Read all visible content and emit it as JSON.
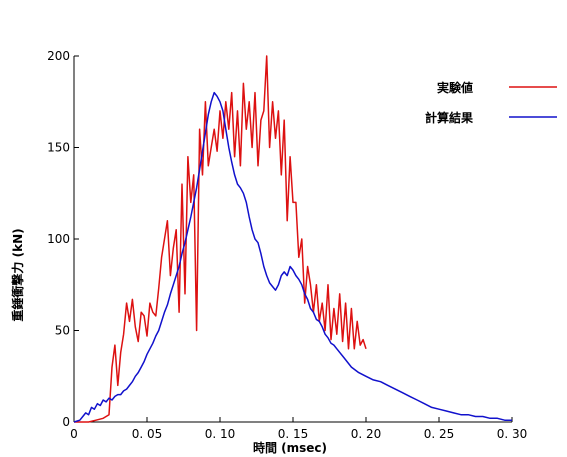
{
  "chart_data": {
    "type": "line",
    "title": "",
    "xlabel": "時間 (msec)",
    "ylabel": "重錘衝撃力 (kN)",
    "xlim": [
      0,
      0.3
    ],
    "ylim": [
      0,
      200
    ],
    "x_ticks": [
      0,
      0.05,
      0.1,
      0.15,
      0.2,
      0.25,
      0.3
    ],
    "x_tick_labels": [
      "0",
      "0. 05",
      "0. 10",
      "0. 15",
      "0. 20",
      "0. 25",
      "0. 30"
    ],
    "y_ticks": [
      0,
      50,
      100,
      150,
      200
    ],
    "y_tick_labels": [
      "0",
      "50",
      "100",
      "150",
      "200"
    ],
    "grid": false,
    "legend_position": "top-right",
    "series": [
      {
        "name": "実験値",
        "color": "#dd1111",
        "x": [
          0.0,
          0.005,
          0.01,
          0.015,
          0.02,
          0.024,
          0.026,
          0.028,
          0.03,
          0.032,
          0.034,
          0.036,
          0.038,
          0.04,
          0.042,
          0.044,
          0.046,
          0.048,
          0.05,
          0.052,
          0.054,
          0.056,
          0.058,
          0.06,
          0.062,
          0.064,
          0.066,
          0.068,
          0.07,
          0.072,
          0.074,
          0.076,
          0.078,
          0.08,
          0.082,
          0.084,
          0.086,
          0.088,
          0.09,
          0.092,
          0.094,
          0.096,
          0.098,
          0.1,
          0.102,
          0.104,
          0.106,
          0.108,
          0.11,
          0.112,
          0.114,
          0.116,
          0.118,
          0.12,
          0.122,
          0.124,
          0.126,
          0.128,
          0.13,
          0.132,
          0.134,
          0.136,
          0.138,
          0.14,
          0.142,
          0.144,
          0.146,
          0.148,
          0.15,
          0.152,
          0.154,
          0.156,
          0.158,
          0.16,
          0.162,
          0.164,
          0.166,
          0.168,
          0.17,
          0.172,
          0.174,
          0.176,
          0.178,
          0.18,
          0.182,
          0.184,
          0.186,
          0.188,
          0.19,
          0.192,
          0.194,
          0.196,
          0.198,
          0.2
        ],
        "y": [
          0,
          0,
          0,
          1,
          2,
          4,
          30,
          42,
          20,
          38,
          48,
          65,
          55,
          67,
          52,
          44,
          60,
          58,
          47,
          65,
          60,
          58,
          73,
          90,
          100,
          110,
          80,
          95,
          105,
          60,
          130,
          70,
          145,
          120,
          135,
          50,
          160,
          135,
          175,
          140,
          150,
          160,
          148,
          170,
          155,
          175,
          160,
          180,
          145,
          170,
          140,
          185,
          160,
          175,
          150,
          180,
          140,
          165,
          170,
          200,
          150,
          175,
          155,
          170,
          135,
          165,
          110,
          145,
          120,
          120,
          90,
          100,
          65,
          85,
          75,
          60,
          75,
          55,
          65,
          50,
          75,
          45,
          62,
          48,
          70,
          44,
          65,
          40,
          62,
          40,
          55,
          42,
          45,
          40
        ],
        "x_stride_note": ""
      },
      {
        "name": "計算結果",
        "color": "#1111cc",
        "x": [
          0.0,
          0.004,
          0.006,
          0.008,
          0.01,
          0.012,
          0.014,
          0.016,
          0.018,
          0.02,
          0.022,
          0.024,
          0.026,
          0.028,
          0.03,
          0.032,
          0.034,
          0.036,
          0.038,
          0.04,
          0.042,
          0.044,
          0.046,
          0.048,
          0.05,
          0.052,
          0.054,
          0.056,
          0.058,
          0.06,
          0.062,
          0.064,
          0.066,
          0.068,
          0.07,
          0.072,
          0.074,
          0.076,
          0.078,
          0.08,
          0.082,
          0.084,
          0.086,
          0.088,
          0.09,
          0.092,
          0.094,
          0.096,
          0.098,
          0.1,
          0.102,
          0.104,
          0.106,
          0.108,
          0.11,
          0.112,
          0.114,
          0.116,
          0.118,
          0.12,
          0.122,
          0.124,
          0.126,
          0.128,
          0.13,
          0.132,
          0.134,
          0.136,
          0.138,
          0.14,
          0.142,
          0.144,
          0.146,
          0.148,
          0.15,
          0.152,
          0.154,
          0.156,
          0.158,
          0.16,
          0.162,
          0.164,
          0.166,
          0.168,
          0.17,
          0.172,
          0.174,
          0.176,
          0.178,
          0.18,
          0.185,
          0.19,
          0.195,
          0.2,
          0.205,
          0.21,
          0.215,
          0.22,
          0.225,
          0.23,
          0.235,
          0.24,
          0.245,
          0.25,
          0.255,
          0.26,
          0.265,
          0.27,
          0.275,
          0.28,
          0.285,
          0.29,
          0.295,
          0.3
        ],
        "y": [
          0,
          1,
          3,
          5,
          4,
          8,
          7,
          10,
          9,
          12,
          11,
          13,
          12,
          14,
          15,
          15,
          17,
          18,
          20,
          22,
          25,
          27,
          30,
          33,
          37,
          40,
          43,
          47,
          50,
          55,
          60,
          64,
          70,
          75,
          80,
          85,
          92,
          98,
          105,
          112,
          120,
          128,
          138,
          148,
          158,
          168,
          175,
          180,
          178,
          175,
          170,
          160,
          150,
          142,
          135,
          130,
          128,
          125,
          120,
          112,
          105,
          100,
          98,
          92,
          85,
          80,
          76,
          74,
          72,
          75,
          80,
          82,
          80,
          85,
          83,
          80,
          78,
          75,
          70,
          67,
          62,
          60,
          56,
          55,
          52,
          48,
          46,
          43,
          42,
          40,
          35,
          30,
          27,
          25,
          23,
          22,
          20,
          18,
          16,
          14,
          12,
          10,
          8,
          7,
          6,
          5,
          4,
          4,
          3,
          3,
          2,
          2,
          1,
          1
        ],
        "x_stride_note": ""
      }
    ]
  }
}
